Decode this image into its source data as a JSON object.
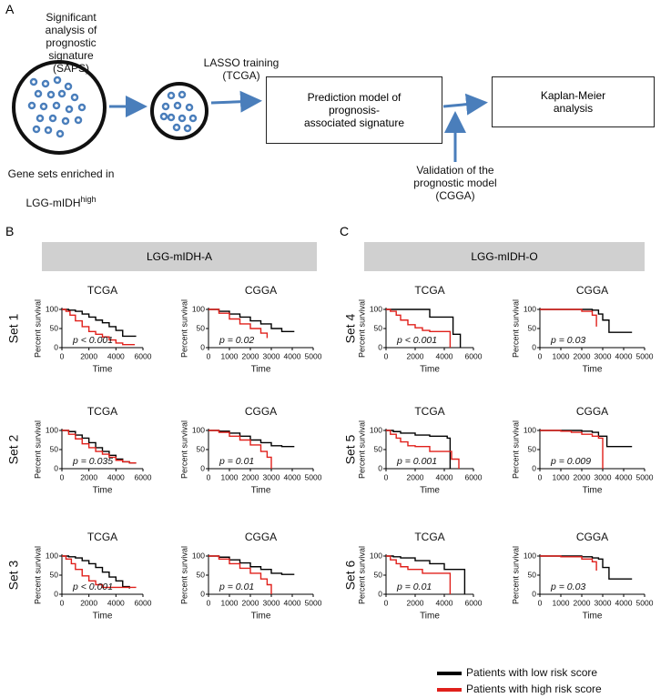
{
  "panel_labels": [
    "A",
    "B",
    "C"
  ],
  "diagram": {
    "saps_label": "Significant\nanalysis of\nprognostic\nsignature\n(SAPS)",
    "lasso_label": "LASSO training\n(TCGA)",
    "prediction_box": "Prediction model of\nprognosis-\nassociated signature",
    "km_box": "Kaplan-Meier\nanalysis",
    "validation_label": "Validation of the\nprognostic model\n(CGGA)",
    "gene_sets_label": {
      "line1": "Gene sets enriched in",
      "line2": "LGG-mIDH",
      "sup": "high"
    }
  },
  "panels": [
    {
      "title": "LGG-mIDH-A",
      "sets": [
        "Set 1",
        "Set 2",
        "Set 3"
      ]
    },
    {
      "title": "LGG-mIDH-O",
      "sets": [
        "Set 4",
        "Set 5",
        "Set 6"
      ]
    }
  ],
  "legend": [
    {
      "name": "Patients with low risk score",
      "color": "#000000"
    },
    {
      "name": "Patients with high risk score",
      "color": "#e0201b"
    }
  ],
  "chart_data": [
    {
      "type": "line",
      "title": "TCGA",
      "x_label": "Time",
      "y_label": "Percent survival",
      "annotation": "p < 0.001",
      "xlim": [
        0,
        6000
      ],
      "xticks": [
        0,
        2000,
        4000,
        6000
      ],
      "ylim": [
        0,
        100
      ],
      "yticks": [
        0,
        50,
        100
      ],
      "series": [
        {
          "color": "#000000",
          "x": [
            0,
            500,
            1000,
            1500,
            2000,
            2500,
            3000,
            3500,
            4000,
            4500,
            5000,
            5500
          ],
          "values": [
            100,
            98,
            95,
            88,
            80,
            72,
            65,
            55,
            45,
            30,
            30,
            30
          ]
        },
        {
          "color": "#e0201b",
          "x": [
            0,
            300,
            600,
            1000,
            1500,
            2000,
            2500,
            3000,
            3500,
            4000,
            4500,
            5000,
            5400
          ],
          "values": [
            100,
            95,
            85,
            70,
            55,
            42,
            35,
            28,
            20,
            12,
            8,
            8,
            8
          ]
        }
      ]
    },
    {
      "type": "line",
      "title": "CGGA",
      "x_label": "Time",
      "y_label": "Percent survival",
      "annotation": "p = 0.02",
      "xlim": [
        0,
        5000
      ],
      "xticks": [
        0,
        1000,
        2000,
        3000,
        4000,
        5000
      ],
      "ylim": [
        0,
        100
      ],
      "yticks": [
        0,
        50,
        100
      ],
      "series": [
        {
          "color": "#000000",
          "x": [
            0,
            500,
            1000,
            1500,
            2000,
            2500,
            3000,
            3500,
            4100
          ],
          "values": [
            100,
            95,
            88,
            80,
            70,
            62,
            50,
            42,
            42
          ]
        },
        {
          "color": "#e0201b",
          "x": [
            0,
            500,
            1000,
            1500,
            2000,
            2500,
            2800
          ],
          "values": [
            100,
            90,
            75,
            62,
            50,
            38,
            25
          ]
        }
      ]
    },
    {
      "type": "line",
      "title": "TCGA",
      "x_label": "Time",
      "y_label": "Percent survival",
      "annotation": "p = 0.035",
      "xlim": [
        0,
        6000
      ],
      "xticks": [
        0,
        2000,
        4000,
        6000
      ],
      "ylim": [
        0,
        100
      ],
      "yticks": [
        0,
        50,
        100
      ],
      "series": [
        {
          "color": "#000000",
          "x": [
            0,
            500,
            1000,
            1500,
            2000,
            2500,
            3000,
            3500,
            4000,
            4500,
            5000,
            5500
          ],
          "values": [
            100,
            97,
            88,
            80,
            68,
            55,
            45,
            35,
            25,
            18,
            15,
            15
          ]
        },
        {
          "color": "#e0201b",
          "x": [
            0,
            500,
            1000,
            1500,
            2000,
            2500,
            3000,
            3500,
            4000,
            4500,
            5000,
            5500
          ],
          "values": [
            100,
            90,
            78,
            65,
            55,
            45,
            38,
            30,
            22,
            18,
            15,
            15
          ]
        }
      ]
    },
    {
      "type": "line",
      "title": "CGGA",
      "x_label": "Time",
      "y_label": "Percent survival",
      "annotation": "p = 0.01",
      "xlim": [
        0,
        5000
      ],
      "xticks": [
        0,
        1000,
        2000,
        3000,
        4000,
        5000
      ],
      "ylim": [
        0,
        100
      ],
      "yticks": [
        0,
        50,
        100
      ],
      "series": [
        {
          "color": "#000000",
          "x": [
            0,
            500,
            1000,
            1500,
            2000,
            2500,
            3000,
            3500,
            4100
          ],
          "values": [
            100,
            98,
            93,
            85,
            75,
            68,
            60,
            58,
            58
          ]
        },
        {
          "color": "#e0201b",
          "x": [
            0,
            500,
            1000,
            1500,
            2000,
            2500,
            2800,
            3000
          ],
          "values": [
            100,
            95,
            85,
            75,
            62,
            45,
            30,
            0
          ]
        }
      ]
    },
    {
      "type": "line",
      "title": "TCGA",
      "x_label": "Time",
      "y_label": "Percent survival",
      "annotation": "p < 0.001",
      "xlim": [
        0,
        6000
      ],
      "xticks": [
        0,
        2000,
        4000,
        6000
      ],
      "ylim": [
        0,
        100
      ],
      "yticks": [
        0,
        50,
        100
      ],
      "series": [
        {
          "color": "#000000",
          "x": [
            0,
            500,
            1000,
            1500,
            2000,
            2500,
            3000,
            3500,
            4000,
            4500,
            5000
          ],
          "values": [
            100,
            98,
            95,
            88,
            80,
            70,
            58,
            45,
            35,
            20,
            15
          ]
        },
        {
          "color": "#e0201b",
          "x": [
            0,
            300,
            700,
            1000,
            1500,
            2000,
            2500,
            3000,
            4000,
            5000,
            5500
          ],
          "values": [
            100,
            92,
            80,
            65,
            48,
            35,
            25,
            18,
            18,
            18,
            18
          ]
        }
      ]
    },
    {
      "type": "line",
      "title": "CGGA",
      "x_label": "Time",
      "y_label": "Percent survival",
      "annotation": "p = 0.01",
      "xlim": [
        0,
        5000
      ],
      "xticks": [
        0,
        1000,
        2000,
        3000,
        4000,
        5000
      ],
      "ylim": [
        0,
        100
      ],
      "yticks": [
        0,
        50,
        100
      ],
      "series": [
        {
          "color": "#000000",
          "x": [
            0,
            500,
            1000,
            1500,
            2000,
            2500,
            3000,
            3500,
            4100
          ],
          "values": [
            100,
            97,
            90,
            82,
            72,
            65,
            55,
            52,
            52
          ]
        },
        {
          "color": "#e0201b",
          "x": [
            0,
            500,
            1000,
            1500,
            2000,
            2500,
            2800,
            3000
          ],
          "values": [
            100,
            92,
            80,
            68,
            55,
            40,
            25,
            0
          ]
        }
      ]
    },
    {
      "type": "line",
      "title": "TCGA",
      "x_label": "Time",
      "y_label": "Percent survival",
      "annotation": "p < 0.001",
      "xlim": [
        0,
        6000
      ],
      "xticks": [
        0,
        2000,
        4000,
        6000
      ],
      "ylim": [
        0,
        100
      ],
      "yticks": [
        0,
        50,
        100
      ],
      "series": [
        {
          "color": "#000000",
          "x": [
            0,
            1000,
            2000,
            3000,
            4000,
            4600,
            5100
          ],
          "values": [
            100,
            100,
            100,
            80,
            80,
            35,
            0
          ]
        },
        {
          "color": "#e0201b",
          "x": [
            0,
            300,
            700,
            1000,
            1500,
            2000,
            2500,
            3000,
            4000,
            4400
          ],
          "values": [
            100,
            95,
            85,
            72,
            60,
            52,
            45,
            42,
            42,
            0
          ]
        }
      ]
    },
    {
      "type": "line",
      "title": "CGGA",
      "x_label": "Time",
      "y_label": "Percent survival",
      "annotation": "p = 0.03",
      "xlim": [
        0,
        5000
      ],
      "xticks": [
        0,
        1000,
        2000,
        3000,
        4000,
        5000
      ],
      "ylim": [
        0,
        100
      ],
      "yticks": [
        0,
        50,
        100
      ],
      "series": [
        {
          "color": "#000000",
          "x": [
            0,
            1000,
            2000,
            2500,
            2800,
            3000,
            3300,
            4400
          ],
          "values": [
            100,
            100,
            100,
            98,
            88,
            72,
            40,
            40
          ]
        },
        {
          "color": "#e0201b",
          "x": [
            0,
            1000,
            2000,
            2500,
            2700
          ],
          "values": [
            100,
            100,
            95,
            85,
            55
          ]
        }
      ]
    },
    {
      "type": "line",
      "title": "TCGA",
      "x_label": "Time",
      "y_label": "Percent survival",
      "annotation": "p = 0.001",
      "xlim": [
        0,
        6000
      ],
      "xticks": [
        0,
        2000,
        4000,
        6000
      ],
      "ylim": [
        0,
        100
      ],
      "yticks": [
        0,
        50,
        100
      ],
      "series": [
        {
          "color": "#000000",
          "x": [
            0,
            500,
            1000,
            2000,
            3000,
            4200,
            4400
          ],
          "values": [
            100,
            97,
            93,
            88,
            85,
            80,
            0
          ]
        },
        {
          "color": "#e0201b",
          "x": [
            0,
            300,
            700,
            1000,
            1500,
            2000,
            3000,
            4500,
            5000
          ],
          "values": [
            100,
            90,
            80,
            70,
            60,
            58,
            45,
            25,
            0
          ]
        }
      ]
    },
    {
      "type": "line",
      "title": "CGGA",
      "x_label": "Time",
      "y_label": "Percent survival",
      "annotation": "p = 0.009",
      "xlim": [
        0,
        5000
      ],
      "xticks": [
        0,
        1000,
        2000,
        3000,
        4000,
        5000
      ],
      "ylim": [
        0,
        100
      ],
      "yticks": [
        0,
        50,
        100
      ],
      "series": [
        {
          "color": "#000000",
          "x": [
            0,
            1000,
            2000,
            2500,
            2800,
            3200,
            4400
          ],
          "values": [
            100,
            100,
            98,
            95,
            85,
            58,
            58
          ]
        },
        {
          "color": "#e0201b",
          "x": [
            0,
            1000,
            1500,
            2000,
            2500,
            2800,
            3000
          ],
          "values": [
            100,
            98,
            95,
            90,
            85,
            80,
            0
          ]
        }
      ]
    },
    {
      "type": "line",
      "title": "TCGA",
      "x_label": "Time",
      "y_label": "Percent survival",
      "annotation": "p = 0.01",
      "xlim": [
        0,
        6000
      ],
      "xticks": [
        0,
        2000,
        4000,
        6000
      ],
      "ylim": [
        0,
        100
      ],
      "yticks": [
        0,
        50,
        100
      ],
      "series": [
        {
          "color": "#000000",
          "x": [
            0,
            500,
            1000,
            2000,
            3000,
            4000,
            5000,
            5400
          ],
          "values": [
            100,
            98,
            95,
            88,
            80,
            65,
            65,
            0
          ]
        },
        {
          "color": "#e0201b",
          "x": [
            0,
            300,
            700,
            1000,
            1500,
            2500,
            4000,
            4400
          ],
          "values": [
            100,
            90,
            80,
            72,
            65,
            55,
            55,
            0
          ]
        }
      ]
    },
    {
      "type": "line",
      "title": "CGGA",
      "x_label": "Time",
      "y_label": "Percent survival",
      "annotation": "p = 0.03",
      "xlim": [
        0,
        5000
      ],
      "xticks": [
        0,
        1000,
        2000,
        3000,
        4000,
        5000
      ],
      "ylim": [
        0,
        100
      ],
      "yticks": [
        0,
        50,
        100
      ],
      "series": [
        {
          "color": "#000000",
          "x": [
            0,
            1000,
            2000,
            2500,
            2800,
            3000,
            3300,
            4400
          ],
          "values": [
            100,
            100,
            98,
            95,
            92,
            70,
            40,
            40
          ]
        },
        {
          "color": "#e0201b",
          "x": [
            0,
            1000,
            2000,
            2500,
            2700
          ],
          "values": [
            100,
            98,
            92,
            85,
            62
          ]
        }
      ]
    }
  ]
}
